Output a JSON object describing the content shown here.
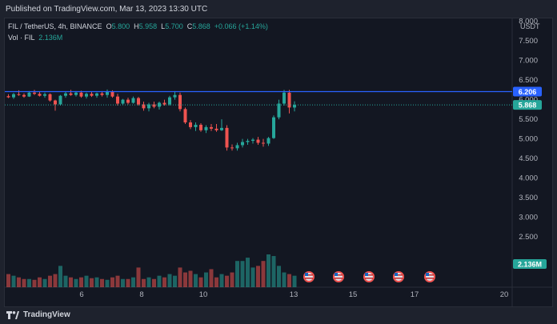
{
  "header": {
    "published": "Published on TradingView.com, Mar 13, 2023 13:30 UTC"
  },
  "legend": {
    "symbol": "FIL / TetherUS, 4h, BINANCE",
    "o_label": "O",
    "o": "5.800",
    "h_label": "H",
    "h": "5.958",
    "l_label": "L",
    "l": "5.700",
    "c_label": "C",
    "c": "5.868",
    "change": "+0.066 (+1.14%)",
    "vol_label": "Vol · FIL",
    "vol": "2.136M"
  },
  "price_axis": {
    "unit": "USDT",
    "ticks": [
      "8.000",
      "7.500",
      "7.000",
      "6.500",
      "6.000",
      "5.500",
      "5.000",
      "4.500",
      "4.000",
      "3.500",
      "3.000",
      "2.500"
    ]
  },
  "time_axis": {
    "ticks": [
      "6",
      "8",
      "10",
      "13",
      "15",
      "17",
      "20"
    ]
  },
  "labels": {
    "line_price": "6.206",
    "last_price": "5.868",
    "volume": "2.136M"
  },
  "colors": {
    "up": "#26a69a",
    "down": "#ef5350",
    "line": "#2962ff",
    "background": "#131722"
  },
  "footer": {
    "brand": "TradingView"
  },
  "chart_data": {
    "type": "candlestick",
    "ylim": [
      2.3,
      8.3
    ],
    "horizontal_line": 6.206,
    "last_price": 5.868,
    "candles": [
      [
        6.09,
        6.14,
        6.04,
        6.06
      ],
      [
        6.06,
        6.17,
        6.02,
        6.14
      ],
      [
        6.14,
        6.24,
        6.1,
        6.12
      ],
      [
        6.12,
        6.16,
        6.05,
        6.08
      ],
      [
        6.08,
        6.22,
        6.07,
        6.18
      ],
      [
        6.18,
        6.25,
        6.12,
        6.15
      ],
      [
        6.15,
        6.2,
        6.08,
        6.1
      ],
      [
        6.1,
        6.18,
        6.05,
        6.14
      ],
      [
        6.14,
        6.16,
        5.95,
        5.98
      ],
      [
        5.98,
        6.0,
        5.72,
        5.88
      ],
      [
        5.88,
        6.12,
        5.85,
        6.1
      ],
      [
        6.1,
        6.2,
        6.05,
        6.16
      ],
      [
        6.16,
        6.25,
        6.1,
        6.12
      ],
      [
        6.12,
        6.22,
        6.08,
        6.18
      ],
      [
        6.18,
        6.23,
        6.05,
        6.08
      ],
      [
        6.08,
        6.18,
        6.03,
        6.15
      ],
      [
        6.15,
        6.2,
        6.07,
        6.1
      ],
      [
        6.1,
        6.18,
        6.05,
        6.16
      ],
      [
        6.16,
        6.22,
        6.08,
        6.12
      ],
      [
        6.12,
        6.26,
        6.05,
        6.21
      ],
      [
        6.21,
        6.24,
        6.05,
        6.08
      ],
      [
        6.08,
        6.15,
        5.85,
        5.9
      ],
      [
        5.9,
        6.02,
        5.86,
        6.0
      ],
      [
        6.0,
        6.05,
        5.88,
        5.92
      ],
      [
        5.92,
        6.08,
        5.9,
        6.04
      ],
      [
        6.04,
        6.07,
        5.85,
        5.88
      ],
      [
        5.88,
        5.95,
        5.72,
        5.78
      ],
      [
        5.78,
        5.92,
        5.7,
        5.88
      ],
      [
        5.88,
        5.95,
        5.78,
        5.82
      ],
      [
        5.82,
        5.95,
        5.75,
        5.92
      ],
      [
        5.92,
        6.0,
        5.85,
        5.88
      ],
      [
        5.88,
        6.1,
        5.85,
        6.06
      ],
      [
        6.06,
        6.22,
        6.0,
        6.12
      ],
      [
        6.12,
        6.18,
        5.7,
        5.76
      ],
      [
        5.76,
        5.8,
        5.38,
        5.42
      ],
      [
        5.42,
        5.48,
        5.25,
        5.3
      ],
      [
        5.3,
        5.42,
        5.2,
        5.36
      ],
      [
        5.36,
        5.4,
        5.18,
        5.22
      ],
      [
        5.22,
        5.35,
        5.15,
        5.3
      ],
      [
        5.3,
        5.38,
        5.2,
        5.26
      ],
      [
        5.26,
        5.38,
        5.18,
        5.22
      ],
      [
        5.22,
        5.5,
        5.2,
        5.28
      ],
      [
        5.28,
        5.35,
        4.7,
        4.78
      ],
      [
        4.78,
        4.86,
        4.7,
        4.76
      ],
      [
        4.76,
        4.9,
        4.7,
        4.84
      ],
      [
        4.84,
        5.0,
        4.78,
        4.92
      ],
      [
        4.92,
        5.0,
        4.85,
        4.95
      ],
      [
        4.95,
        5.02,
        4.88,
        4.98
      ],
      [
        4.98,
        5.05,
        4.85,
        4.9
      ],
      [
        4.9,
        5.0,
        4.8,
        4.88
      ],
      [
        4.88,
        5.05,
        4.82,
        5.02
      ],
      [
        5.02,
        5.6,
        5.0,
        5.55
      ],
      [
        5.55,
        6.0,
        5.5,
        5.9
      ],
      [
        5.9,
        6.25,
        5.85,
        6.18
      ],
      [
        6.18,
        6.25,
        5.65,
        5.8
      ],
      [
        5.8,
        5.958,
        5.7,
        5.868
      ]
    ],
    "volume_scale": 4.0,
    "volumes": [
      0.8,
      0.7,
      0.6,
      0.5,
      0.5,
      0.45,
      0.6,
      0.5,
      0.7,
      0.8,
      1.3,
      0.7,
      0.6,
      0.5,
      0.6,
      0.7,
      0.55,
      0.6,
      0.5,
      0.45,
      0.6,
      0.7,
      0.5,
      0.5,
      0.6,
      1.2,
      0.5,
      0.6,
      0.5,
      0.7,
      0.6,
      0.8,
      0.7,
      1.2,
      0.9,
      1.0,
      0.8,
      0.6,
      0.9,
      1.1,
      0.6,
      0.8,
      0.7,
      0.9,
      1.6,
      1.6,
      1.8,
      1.2,
      1.3,
      1.6,
      2.0,
      1.9,
      1.3,
      0.9,
      0.8,
      0.7
    ]
  }
}
